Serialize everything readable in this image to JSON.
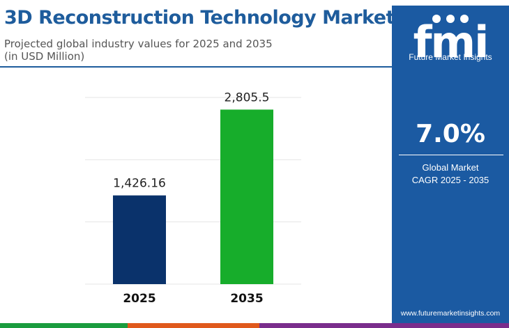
{
  "header": {
    "title": "3D Reconstruction Technology Market",
    "subtitle_line1": "Projected global industry values for 2025 and 2035",
    "subtitle_line2": "(in USD Million)"
  },
  "chart_data": {
    "type": "bar",
    "categories": [
      "2025",
      "2035"
    ],
    "values": [
      1426.16,
      2805.5
    ],
    "value_labels": [
      "1,426.16",
      "2,805.5"
    ],
    "bar_colors": [
      "#0a326b",
      "#17ad2b"
    ],
    "ylim": [
      0,
      3000
    ],
    "grid": true
  },
  "sidebar": {
    "logo_letters": "fmi",
    "logo_name": "Future Market Insights",
    "cagr_value": "7.0%",
    "cagr_label_line1": "Global Market",
    "cagr_label_line2": "CAGR 2025 - 2035",
    "website": "www.futuremarketinsights.com"
  },
  "colors": {
    "title": "#1e5c9c",
    "panel": "#1b5aa2",
    "bottom_bar": [
      "#1a9c3e",
      "#e0591c",
      "#7a2d8c"
    ]
  }
}
